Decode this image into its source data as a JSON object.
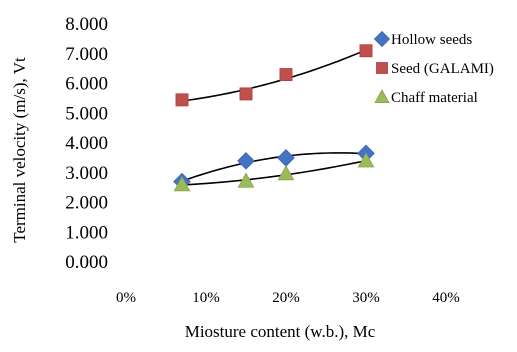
{
  "chart_data": {
    "type": "scatter",
    "title": "",
    "xlabel": "Miosture content (w.b.), Mc",
    "ylabel": "Terminal velocity (m/s), Vt",
    "xlim": [
      0,
      40
    ],
    "ylim": [
      0,
      8
    ],
    "x_ticks": [
      0,
      10,
      20,
      30,
      40
    ],
    "x_tick_labels": [
      "0%",
      "10%",
      "20%",
      "30%",
      "40%"
    ],
    "y_ticks": [
      0,
      1,
      2,
      3,
      4,
      5,
      6,
      7,
      8
    ],
    "y_tick_labels": [
      "0.000",
      "1.000",
      "2.000",
      "3.000",
      "4.000",
      "5.000",
      "6.000",
      "7.000",
      "8.000"
    ],
    "grid": false,
    "legend_position": "right",
    "trendline": "polynomial order 2 per series",
    "series": [
      {
        "name": "Hollow seeds",
        "marker": "diamond",
        "color": "#4472C4",
        "x": [
          7,
          15,
          20,
          30
        ],
        "y": [
          2.7,
          3.4,
          3.5,
          3.65
        ]
      },
      {
        "name": "Seed (GALAMI)",
        "marker": "square",
        "color": "#C0504D",
        "x": [
          7,
          15,
          20,
          30
        ],
        "y": [
          5.45,
          5.65,
          6.3,
          7.1
        ]
      },
      {
        "name": "Chaff material",
        "marker": "triangle",
        "color": "#9BBB59",
        "x": [
          7,
          15,
          20,
          30
        ],
        "y": [
          2.6,
          2.72,
          2.97,
          3.4
        ]
      }
    ]
  }
}
